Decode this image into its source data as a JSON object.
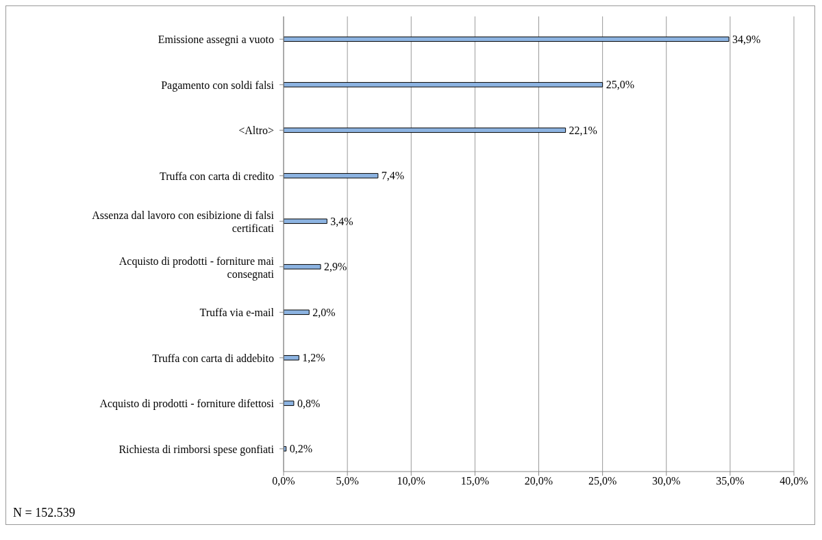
{
  "chart_data": {
    "type": "bar",
    "orientation": "horizontal",
    "categories": [
      "Emissione assegni a vuoto",
      "Pagamento con soldi falsi",
      "<Altro>",
      "Truffa con carta di credito",
      "Assenza dal lavoro con esibizione di falsi certificati",
      "Acquisto di prodotti - forniture mai consegnati",
      "Truffa via e-mail",
      "Truffa con carta di addebito",
      "Acquisto di prodotti - forniture difettosi",
      "Richiesta di rimborsi spese gonfiati"
    ],
    "values": [
      34.9,
      25.0,
      22.1,
      7.4,
      3.4,
      2.9,
      2.0,
      1.2,
      0.8,
      0.2
    ],
    "value_labels": [
      "34,9%",
      "25,0%",
      "22,1%",
      "7,4%",
      "3,4%",
      "2,9%",
      "2,0%",
      "1,2%",
      "0,8%",
      "0,2%"
    ],
    "color": "#8db4e2",
    "xlim": [
      0,
      40
    ],
    "xticks": [
      {
        "value": 0,
        "label": "0,0%"
      },
      {
        "value": 5,
        "label": "5,0%"
      },
      {
        "value": 10,
        "label": "10,0%"
      },
      {
        "value": 15,
        "label": "15,0%"
      },
      {
        "value": 20,
        "label": "20,0%"
      },
      {
        "value": 25,
        "label": "25,0%"
      },
      {
        "value": 30,
        "label": "30,0%"
      },
      {
        "value": 35,
        "label": "35,0%"
      },
      {
        "value": 40,
        "label": "40,0%"
      }
    ],
    "grid": "x",
    "annotations": [
      "N = 152.539"
    ]
  }
}
